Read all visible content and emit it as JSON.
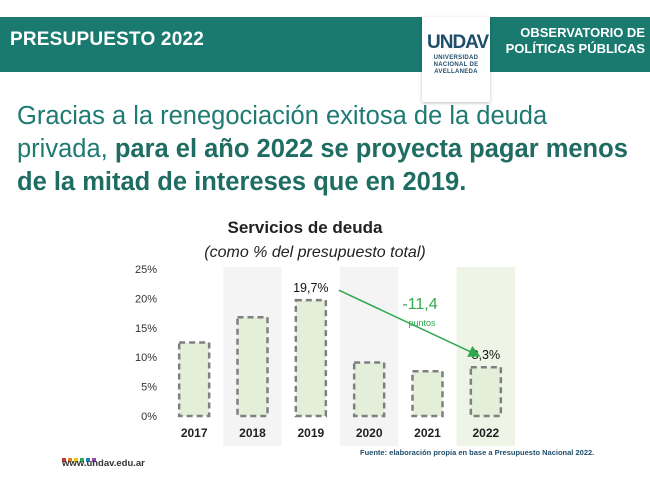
{
  "header": {
    "title": "PRESUPUESTO 2022",
    "observatory": [
      "OBSERVATORIO DE",
      "POLÍTICAS PÚBLICAS"
    ],
    "logo": {
      "mark": "UNDAV",
      "subtitle": [
        "UNIVERSIDAD",
        "NACIONAL DE",
        "AVELLANEDA"
      ]
    },
    "band_color": "#1a7a70"
  },
  "headline": {
    "light_text": "Gracias a la renegociación exitosa de la deuda privada, ",
    "bold_text": "para el año 2022 se proyecta pagar menos de la mitad de intereses que en 2019."
  },
  "chart_data": {
    "type": "bar",
    "title": "Servicios de deuda",
    "subtitle": "(como % del presupuesto total)",
    "categories": [
      "2017",
      "2018",
      "2019",
      "2020",
      "2021",
      "2022"
    ],
    "values": [
      12.5,
      16.8,
      19.7,
      9.1,
      7.6,
      8.3
    ],
    "value_labels": {
      "2019": "19,7%",
      "2022": "8,3%"
    },
    "ylim": [
      0,
      25
    ],
    "yticks": [
      "0%",
      "5%",
      "10%",
      "15%",
      "20%",
      "25%"
    ],
    "highlight_category": "2022",
    "annotation": {
      "value": "-11,4",
      "unit": "puntos"
    },
    "colors": {
      "bar_fill": "#e3efd9",
      "bar_border": "#7f7f7f",
      "arrow": "#2fa84f",
      "highlight_column": "#eef5e6"
    }
  },
  "footer": {
    "source": "Fuente: elaboración propia en base a Presupuesto Nacional 2022.",
    "url": "www.undav.edu.ar",
    "dot_colors": [
      "#c0392b",
      "#e67e22",
      "#f1c40f",
      "#27ae60",
      "#2980b9",
      "#8e44ad"
    ]
  }
}
